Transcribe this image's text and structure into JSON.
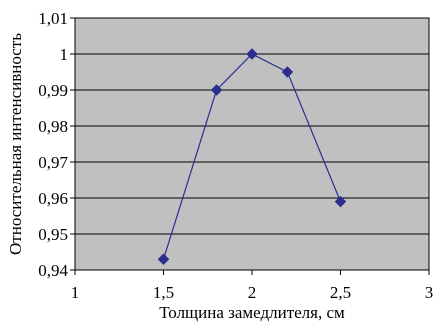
{
  "chart_data": {
    "type": "line",
    "title": "",
    "xlabel": "Толщина замедлителя, см",
    "ylabel": "Относительная интенсивность",
    "xlim": [
      1,
      3
    ],
    "ylim": [
      0.94,
      1.01
    ],
    "x_ticks": [
      1,
      1.5,
      2,
      2.5,
      3
    ],
    "x_tick_labels": [
      "1",
      "1,5",
      "2",
      "2,5",
      "3"
    ],
    "y_ticks": [
      0.94,
      0.95,
      0.96,
      0.97,
      0.98,
      0.99,
      1,
      1.01
    ],
    "y_tick_labels": [
      "0,94",
      "0,95",
      "0,96",
      "0,97",
      "0,98",
      "0,99",
      "1",
      "1,01"
    ],
    "grid": "horizontal",
    "plot_background": "#c0c0c0",
    "series": [
      {
        "color": "#2b2e8f",
        "marker": "diamond",
        "x": [
          1.5,
          1.8,
          2.0,
          2.2,
          2.5
        ],
        "y": [
          0.943,
          0.99,
          1.0,
          0.995,
          0.959
        ]
      }
    ]
  }
}
